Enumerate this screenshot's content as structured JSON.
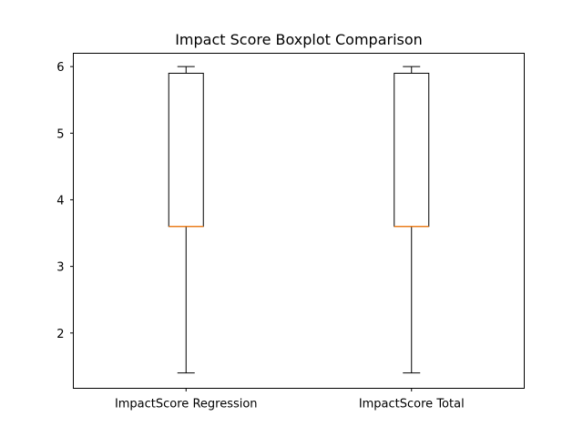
{
  "chart_data": {
    "type": "boxplot",
    "title": "Impact Score Boxplot Comparison",
    "xlabel": "",
    "ylabel": "",
    "ylim": [
      1.17,
      6.2
    ],
    "yticks": [
      2,
      3,
      4,
      5,
      6
    ],
    "grid": false,
    "categories": [
      "ImpactScore Regression",
      "ImpactScore Total"
    ],
    "boxes": [
      {
        "category": "ImpactScore Regression",
        "whislo": 1.4,
        "q1": 3.6,
        "med": 3.6,
        "q3": 5.9,
        "whishi": 6.0
      },
      {
        "category": "ImpactScore Total",
        "whislo": 1.4,
        "q1": 3.6,
        "med": 3.6,
        "q3": 5.9,
        "whishi": 6.0
      }
    ],
    "colors": {
      "box": "#000000",
      "median": "#ff7f0e",
      "axes": "#000000",
      "background": "#ffffff"
    }
  }
}
